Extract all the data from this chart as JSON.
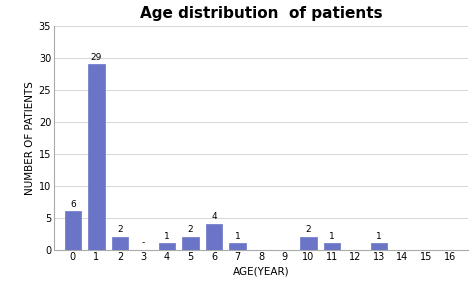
{
  "title": "Age distribution  of patients",
  "xlabel": "AGE(YEAR)",
  "ylabel": "NUMBER OF PATIENTS",
  "categories": [
    0,
    1,
    2,
    3,
    4,
    5,
    6,
    7,
    8,
    9,
    10,
    11,
    12,
    13,
    14,
    15,
    16
  ],
  "values": [
    6,
    29,
    2,
    0,
    1,
    2,
    4,
    1,
    0,
    0,
    2,
    1,
    0,
    1,
    0,
    0,
    0
  ],
  "bar_color": "#6B75C8",
  "ylim": [
    0,
    35
  ],
  "yticks": [
    0,
    5,
    10,
    15,
    20,
    25,
    30,
    35
  ],
  "background_color": "#ffffff",
  "bar_width": 0.7,
  "title_fontsize": 11,
  "title_fontweight": "bold",
  "axis_label_fontsize": 7.5,
  "tick_fontsize": 7,
  "annotation_fontsize": 6.5,
  "annotate_nonzero": [
    0,
    1,
    2,
    4,
    5,
    6,
    7,
    10,
    11,
    13
  ],
  "annotate_zero_as_dash": [
    3
  ],
  "grid_color": "#d0d0d0",
  "spine_color": "#aaaaaa"
}
